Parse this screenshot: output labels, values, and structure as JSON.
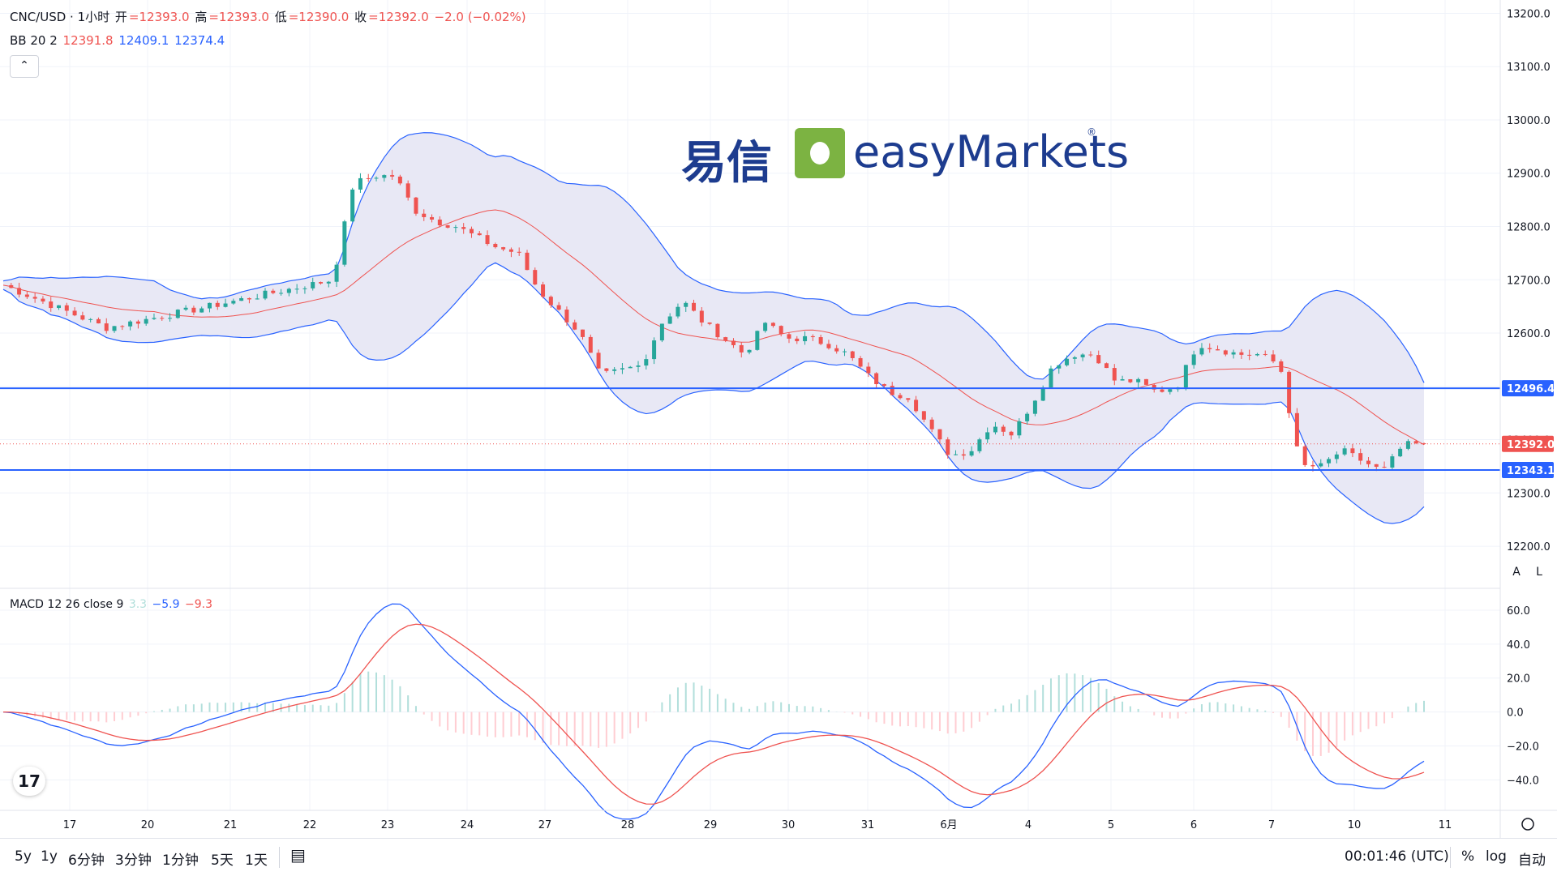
{
  "header": {
    "symbol": "CNC/USD · 1小时",
    "open_label": "开",
    "open": "=12393.0",
    "high_label": "高",
    "high": "=12393.0",
    "low_label": "低",
    "low": "=12390.0",
    "close_label": "收",
    "close": "=12392.0",
    "change": "−2.0 (−0.02%)",
    "bb_label": "BB 20 2",
    "bb_basis": "12391.8",
    "bb_upper": "12409.1",
    "bb_lower": "12374.4",
    "collapse_icon": "chevron-up-icon"
  },
  "watermark": {
    "cn": "易信",
    "en": "easyMarkets",
    "reg": "®"
  },
  "macd_header": {
    "label": "MACD 12 26 close 9",
    "hist": "3.3",
    "macd": "−5.9",
    "signal": "−9.3"
  },
  "scale_buttons": {
    "auto": "A",
    "log": "L"
  },
  "bottom": {
    "ranges": [
      "5y",
      "1y",
      "6分钟",
      "3分钟",
      "1分钟",
      "5天",
      "1天"
    ],
    "time": "00:01:46 (UTC)",
    "pct": "%",
    "log": "log",
    "auto": "自动"
  },
  "colors": {
    "up": "#26a69a",
    "down": "#ef5350",
    "band": "#2962ff",
    "band_fill": "#e8e8f5",
    "basis": "#ef5350"
  },
  "chart_data": [
    {
      "type": "candlestick",
      "title": "CNC/USD · 1小时",
      "y_axis_ticks": [
        12200,
        12300,
        12400,
        12500,
        12600,
        12700,
        12800,
        12900,
        13000,
        13100,
        13200
      ],
      "y_axis_labels": [
        "12200.0",
        "12300.0",
        "12400.0",
        "12500.0",
        "12600.0",
        "12700.0",
        "12800.0",
        "12900.0",
        "13000.0",
        "13100.0",
        "13200.0"
      ],
      "ylim": [
        12118,
        13225
      ],
      "x_axis_labels": [
        "17",
        "20",
        "21",
        "22",
        "23",
        "24",
        "27",
        "28",
        "29",
        "30",
        "31",
        "6月",
        "4",
        "5",
        "6",
        "7",
        "10",
        "11"
      ],
      "horizontal_lines": [
        12496.4,
        12343.1
      ],
      "price_labels": {
        "last": "12392.0",
        "line_upper": "12496.4",
        "line_lower": "12343.1"
      },
      "last_price": 12392.0,
      "close_path": [
        [
          0,
          12690
        ],
        [
          5,
          12610
        ],
        [
          10,
          12650
        ],
        [
          16,
          12700
        ],
        [
          17,
          12880
        ],
        [
          18,
          12895
        ],
        [
          19,
          12895
        ],
        [
          20,
          12830
        ],
        [
          21,
          12810
        ],
        [
          22,
          12800
        ],
        [
          23,
          12780
        ],
        [
          24,
          12760
        ],
        [
          25,
          12750
        ],
        [
          26,
          12680
        ],
        [
          27,
          12640
        ],
        [
          28,
          12600
        ],
        [
          29,
          12520
        ],
        [
          30,
          12530
        ],
        [
          31,
          12540
        ],
        [
          32,
          12620
        ],
        [
          33,
          12660
        ],
        [
          34,
          12620
        ],
        [
          35,
          12590
        ],
        [
          36,
          12560
        ],
        [
          37,
          12620
        ],
        [
          38,
          12590
        ],
        [
          39,
          12590
        ],
        [
          40,
          12580
        ],
        [
          41,
          12560
        ],
        [
          42,
          12520
        ],
        [
          43,
          12490
        ],
        [
          44,
          12480
        ],
        [
          45,
          12420
        ],
        [
          46,
          12370
        ],
        [
          47,
          12380
        ],
        [
          48,
          12430
        ],
        [
          49,
          12410
        ],
        [
          50,
          12470
        ],
        [
          51,
          12540
        ],
        [
          52,
          12560
        ],
        [
          53,
          12560
        ],
        [
          54,
          12510
        ],
        [
          55,
          12510
        ],
        [
          56,
          12490
        ],
        [
          57,
          12500
        ],
        [
          58,
          12580
        ],
        [
          59,
          12570
        ],
        [
          60,
          12560
        ],
        [
          61,
          12560
        ],
        [
          62,
          12540
        ],
        [
          63,
          12350
        ],
        [
          64,
          12350
        ],
        [
          65,
          12380
        ],
        [
          66,
          12360
        ],
        [
          67,
          12340
        ],
        [
          68,
          12390
        ],
        [
          69,
          12392
        ]
      ],
      "series": [
        {
          "name": "BB 20 2 basis",
          "last": 12391.8
        },
        {
          "name": "BB 20 2 upper",
          "last": 12409.1
        },
        {
          "name": "BB 20 2 lower",
          "last": 12374.4
        }
      ]
    },
    {
      "type": "line",
      "title": "MACD 12 26 close 9",
      "y_axis_ticks": [
        -40,
        -20,
        0,
        20,
        40,
        60
      ],
      "y_axis_labels": [
        "−40.0",
        "−20.0",
        "0.0",
        "20.0",
        "40.0",
        "60.0"
      ],
      "ylim": [
        -58,
        71
      ],
      "series": [
        {
          "name": "MACD",
          "last": -5.9
        },
        {
          "name": "Signal",
          "last": -9.3
        },
        {
          "name": "Histogram",
          "last": 3.3
        }
      ]
    }
  ]
}
